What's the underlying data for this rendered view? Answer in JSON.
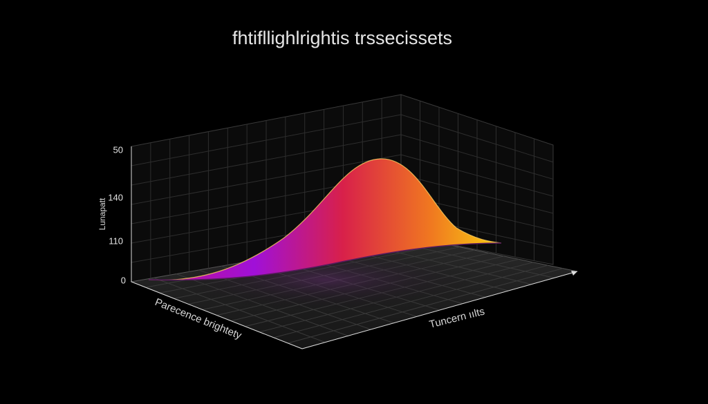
{
  "title": "fhtifllighlrightis trssecissets",
  "axes": {
    "z": {
      "label": "Lunapatt",
      "tick_labels": [
        "50",
        "140",
        "110",
        "0"
      ]
    },
    "x": {
      "label": "Parecence brightety"
    },
    "y": {
      "label": "Tuncern ıılts"
    }
  }
}
